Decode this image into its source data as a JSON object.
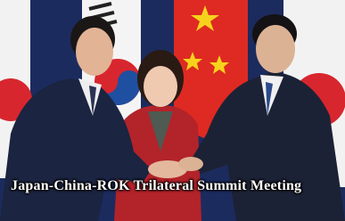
{
  "caption": "Japan-China-ROK Trilateral Summit Meeting"
}
